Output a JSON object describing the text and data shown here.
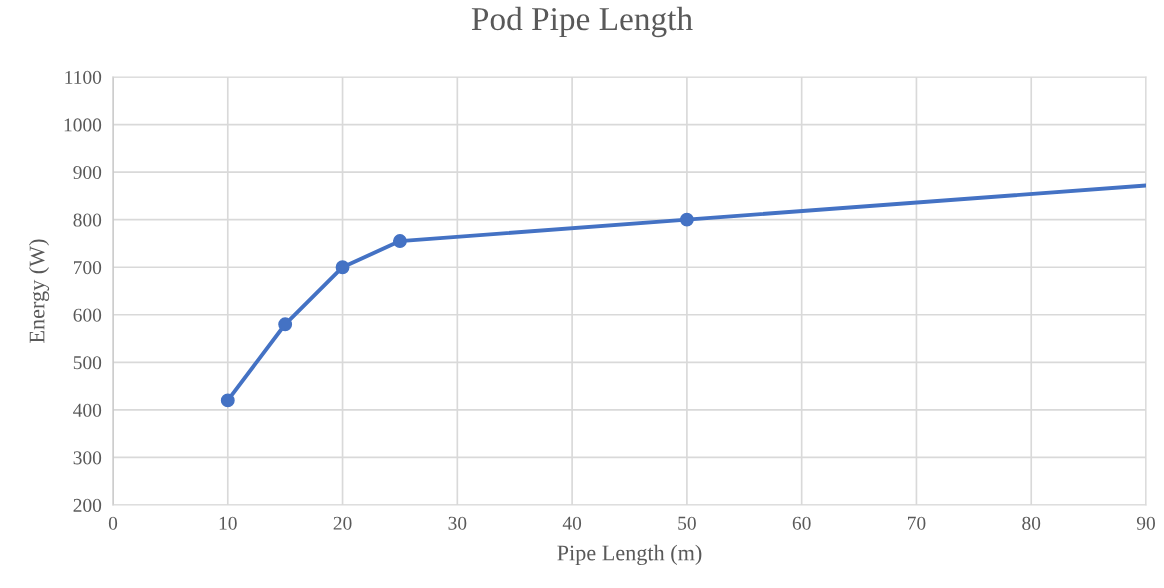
{
  "chart_data": {
    "type": "line",
    "title": "Pod Pipe Length",
    "xlabel": "Pipe Length (m)",
    "ylabel": "Energy (W)",
    "series": [
      {
        "color": "#4472c4",
        "x": [
          10,
          15,
          20,
          25,
          50
        ],
        "values": [
          420,
          580,
          700,
          755,
          800
        ],
        "marker": "circle"
      },
      {
        "color": "#4472c4",
        "x": [
          50,
          90
        ],
        "values": [
          800,
          872
        ],
        "marker": "none"
      }
    ],
    "xlim": [
      0,
      90
    ],
    "xticks": [
      0,
      10,
      20,
      30,
      40,
      50,
      60,
      70,
      80,
      90
    ],
    "ylim": [
      200,
      1100
    ],
    "yticks": [
      200,
      300,
      400,
      500,
      600,
      700,
      800,
      900,
      1000,
      1100
    ],
    "grid": true,
    "legend": false,
    "line_style": "solid"
  }
}
